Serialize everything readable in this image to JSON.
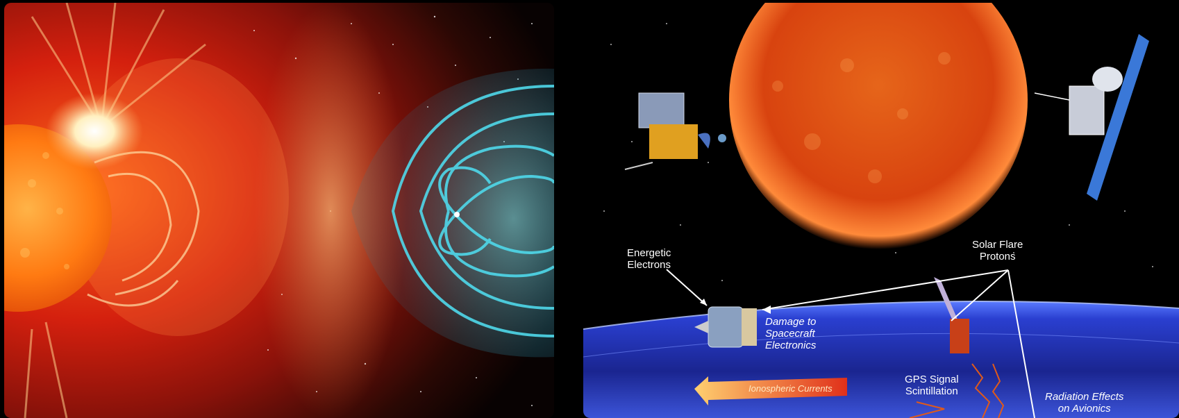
{
  "colors": {
    "background": "#000000",
    "sun_core": "#ff8a1a",
    "flare": "#ffd27a",
    "magnetosphere": "#3fd2e6",
    "earth_atmosphere": "#2a3fd0",
    "current_arrow": "#f5a623"
  },
  "left_image": {
    "description_icons": [
      "sun-icon",
      "coronal-mass-ejection-icon",
      "magnetosphere-icon",
      "earth-icon"
    ]
  },
  "right_image": {
    "labels": {
      "energetic_electrons": [
        "Energetic",
        "Electrons"
      ],
      "solar_flare_protons": [
        "Solar Flare",
        "Protons"
      ],
      "damage": [
        "Damage to",
        "Spacecraft",
        "Electronics"
      ],
      "gps": [
        "GPS Signal",
        "Scintillation"
      ],
      "radiation": [
        "Radiation Effects",
        "on Avionics"
      ],
      "ionospheric": "Ionospheric Currents"
    }
  }
}
